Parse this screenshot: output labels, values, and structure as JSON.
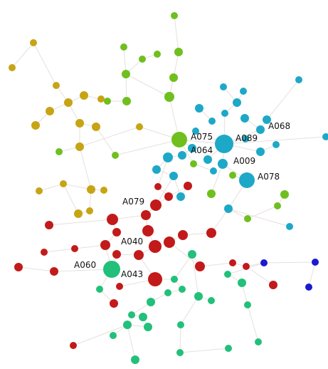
{
  "colors": {
    "edge": "#e6e0dc",
    "yellow": "#c7a414",
    "lime": "#6fbf1e",
    "cyan": "#1ea8c8",
    "red": "#c21a1a",
    "teal": "#22c07a",
    "blue": "#1a1ad0"
  },
  "graph": {
    "labels": {
      "A075": "A075",
      "A064": "A064",
      "A089": "A089",
      "A068": "A068",
      "A009": "A009",
      "A078": "A078",
      "A079": "A079",
      "A040": "A040",
      "A060": "A060",
      "A043": "A043"
    }
  }
}
